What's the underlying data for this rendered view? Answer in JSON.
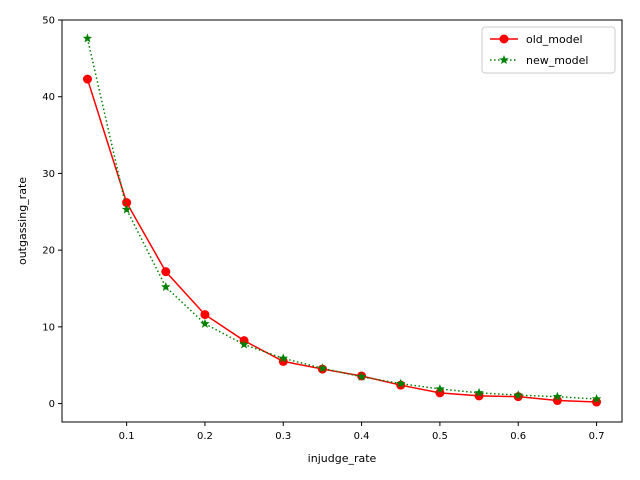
{
  "chart_data": {
    "type": "line",
    "xlabel": "injudge_rate",
    "ylabel": "outgassing_rate",
    "xlim": [
      0.0175,
      0.7325
    ],
    "ylim": [
      -2.4,
      50
    ],
    "x_ticks": [
      0.1,
      0.2,
      0.3,
      0.4,
      0.5,
      0.6,
      0.7
    ],
    "y_ticks": [
      0,
      10,
      20,
      30,
      40,
      50
    ],
    "grid": false,
    "legend_position": "top-right",
    "x": [
      0.05,
      0.1,
      0.15,
      0.2,
      0.25,
      0.3,
      0.35,
      0.4,
      0.45,
      0.5,
      0.55,
      0.6,
      0.65,
      0.7
    ],
    "series": [
      {
        "name": "old_model",
        "color": "#ff0000",
        "line_style": "solid",
        "marker": "circle",
        "values": [
          42.3,
          26.2,
          17.2,
          11.6,
          8.2,
          5.5,
          4.5,
          3.6,
          2.4,
          1.4,
          1.0,
          0.9,
          0.4,
          0.2
        ]
      },
      {
        "name": "new_model",
        "color": "#008000",
        "line_style": "dotted",
        "marker": "star",
        "values": [
          47.6,
          25.3,
          15.2,
          10.4,
          7.7,
          5.9,
          4.6,
          3.5,
          2.6,
          1.9,
          1.4,
          1.1,
          0.9,
          0.6
        ]
      }
    ]
  }
}
